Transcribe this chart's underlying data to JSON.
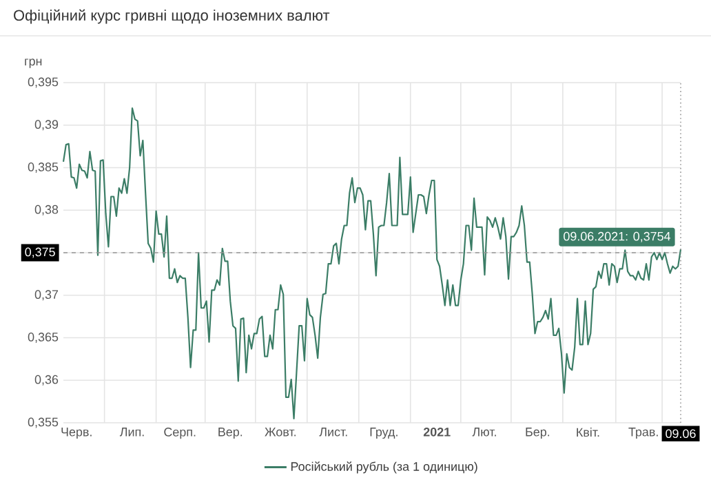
{
  "chart_data": {
    "type": "line",
    "title": "Офіційний курс гривні щодо іноземних валют",
    "ylabel": "грн",
    "categories": [
      null,
      null,
      null,
      null,
      null,
      "Черв.",
      null,
      null,
      null,
      null,
      null,
      null,
      null,
      null,
      null,
      null,
      null,
      null,
      null,
      null,
      null,
      null,
      null,
      null,
      null,
      null,
      "Лип.",
      null,
      null,
      null,
      null,
      null,
      null,
      null,
      null,
      null,
      null,
      null,
      null,
      null,
      null,
      null,
      null,
      null,
      "Серп.",
      null,
      null,
      null,
      null,
      null,
      null,
      null,
      null,
      null,
      null,
      null,
      null,
      null,
      null,
      null,
      null,
      null,
      null,
      "Вер.",
      null,
      null,
      null,
      null,
      null,
      null,
      null,
      null,
      null,
      null,
      null,
      null,
      null,
      null,
      null,
      null,
      null,
      null,
      "Жовт.",
      null,
      null,
      null,
      null,
      null,
      null,
      null,
      null,
      null,
      null,
      null,
      null,
      null,
      null,
      null,
      null,
      null,
      null,
      null,
      "Лист.",
      null,
      null,
      null,
      null,
      null,
      null,
      null,
      null,
      null,
      null,
      null,
      null,
      null,
      null,
      null,
      null,
      null,
      null,
      "Груд.",
      null,
      null,
      null,
      null,
      null,
      null,
      null,
      null,
      null,
      null,
      null,
      null,
      null,
      null,
      null,
      null,
      null,
      null,
      null,
      "**2021**",
      null,
      null,
      null,
      null,
      null,
      null,
      null,
      null,
      null,
      null,
      null,
      null,
      null,
      null,
      null,
      null,
      null,
      "Лют.",
      null,
      null,
      null,
      null,
      null,
      null,
      null,
      null,
      null,
      null,
      null,
      null,
      null,
      null,
      null,
      null,
      null,
      null,
      null,
      "Бер.",
      null,
      null,
      null,
      null,
      null,
      null,
      null,
      null,
      null,
      null,
      null,
      null,
      null,
      null,
      null,
      null,
      null,
      null,
      "Квіт.",
      null,
      null,
      null,
      null,
      null,
      null,
      null,
      null,
      null,
      null,
      null,
      null,
      null,
      null,
      null,
      null,
      null,
      null,
      null,
      null,
      "Трав.",
      null,
      null,
      null,
      null,
      null,
      null,
      null,
      null,
      null,
      null,
      null,
      null,
      null,
      "09.06"
    ],
    "series": [
      {
        "name": "Російський рубль (за 1 одиницю)",
        "color": "#3b7d66",
        "values": [
          0.3857,
          0.3877,
          0.3878,
          0.3839,
          0.3838,
          0.3826,
          0.3854,
          0.3847,
          0.3846,
          0.3838,
          0.3869,
          0.3847,
          0.3846,
          0.3747,
          0.3858,
          0.3859,
          0.3796,
          0.3757,
          0.3816,
          0.3816,
          0.3793,
          0.3826,
          0.382,
          0.3837,
          0.382,
          0.385,
          0.392,
          0.3907,
          0.3905,
          0.3864,
          0.3882,
          0.382,
          0.3761,
          0.3755,
          0.3739,
          0.3799,
          0.3772,
          0.3772,
          0.3745,
          0.3793,
          0.372,
          0.372,
          0.3731,
          0.3715,
          0.3723,
          0.372,
          0.372,
          0.3674,
          0.3615,
          0.3659,
          0.3659,
          0.375,
          0.3685,
          0.3685,
          0.3693,
          0.3645,
          0.3706,
          0.3706,
          0.3718,
          0.3712,
          0.3755,
          0.374,
          0.374,
          0.3693,
          0.3664,
          0.3661,
          0.3599,
          0.3672,
          0.3673,
          0.3609,
          0.3653,
          0.3637,
          0.3655,
          0.3655,
          0.3672,
          0.3675,
          0.3628,
          0.3628,
          0.3653,
          0.3637,
          0.3683,
          0.3683,
          0.3712,
          0.3701,
          0.358,
          0.358,
          0.3601,
          0.3555,
          0.3609,
          0.3664,
          0.3664,
          0.3623,
          0.3696,
          0.3677,
          0.3674,
          0.3653,
          0.3626,
          0.3674,
          0.3701,
          0.3702,
          0.3737,
          0.3737,
          0.3758,
          0.3761,
          0.3737,
          0.3766,
          0.3782,
          0.3782,
          0.382,
          0.3838,
          0.3809,
          0.3826,
          0.3826,
          0.3818,
          0.3777,
          0.3811,
          0.3811,
          0.3772,
          0.3723,
          0.378,
          0.3782,
          0.3782,
          0.3809,
          0.3843,
          0.3782,
          0.3782,
          0.3782,
          0.3862,
          0.3795,
          0.3795,
          0.3795,
          0.3839,
          0.3774,
          0.3796,
          0.3818,
          0.3818,
          0.3816,
          0.3796,
          0.3818,
          0.3835,
          0.3835,
          0.3742,
          0.3734,
          0.3712,
          0.3688,
          0.3718,
          0.3688,
          0.3712,
          0.3688,
          0.3688,
          0.3718,
          0.3737,
          0.3782,
          0.3782,
          0.3753,
          0.3814,
          0.378,
          0.378,
          0.378,
          0.3724,
          0.3792,
          0.3788,
          0.378,
          0.3791,
          0.378,
          0.3766,
          0.3791,
          0.3769,
          0.3719,
          0.3769,
          0.3769,
          0.3774,
          0.3782,
          0.3805,
          0.3782,
          0.3739,
          0.3739,
          0.3701,
          0.3655,
          0.3669,
          0.3669,
          0.3674,
          0.3682,
          0.3672,
          0.3696,
          0.3653,
          0.3653,
          0.3661,
          0.3631,
          0.3585,
          0.3631,
          0.3615,
          0.3612,
          0.3639,
          0.3696,
          0.3642,
          0.3642,
          0.3693,
          0.3642,
          0.3655,
          0.3707,
          0.371,
          0.3728,
          0.372,
          0.3737,
          0.3737,
          0.3712,
          0.3737,
          0.3734,
          0.3715,
          0.3731,
          0.3731,
          0.3753,
          0.3728,
          0.3723,
          0.3723,
          0.3718,
          0.3728,
          0.372,
          0.3718,
          0.3737,
          0.3718,
          0.3745,
          0.375,
          0.3742,
          0.375,
          0.3742,
          0.375,
          0.3737,
          0.3726,
          0.3734,
          0.3731,
          0.3734,
          0.3754
        ]
      }
    ],
    "ylim": [
      0.355,
      0.395
    ],
    "yticks": [
      {
        "value": 0.355,
        "label": "0,355"
      },
      {
        "value": 0.36,
        "label": "0,36"
      },
      {
        "value": 0.365,
        "label": "0,365"
      },
      {
        "value": 0.37,
        "label": "0,37"
      },
      {
        "value": 0.375,
        "label": null
      },
      {
        "value": 0.38,
        "label": "0,38"
      },
      {
        "value": 0.385,
        "label": "0,385"
      },
      {
        "value": 0.39,
        "label": "0,39"
      },
      {
        "value": 0.395,
        "label": "0,395"
      }
    ],
    "grid": true,
    "legend": "bottom",
    "ref_lines": [
      {
        "axis": "y",
        "value": 0.375,
        "label": "0,375",
        "line_style": "dashed"
      },
      {
        "axis": "x",
        "value": "09.06",
        "line_style": "dotted"
      }
    ],
    "annotations": [
      {
        "text": "09.06.2021: 0,3754",
        "x": "09.06",
        "y": 0.3754
      }
    ]
  }
}
